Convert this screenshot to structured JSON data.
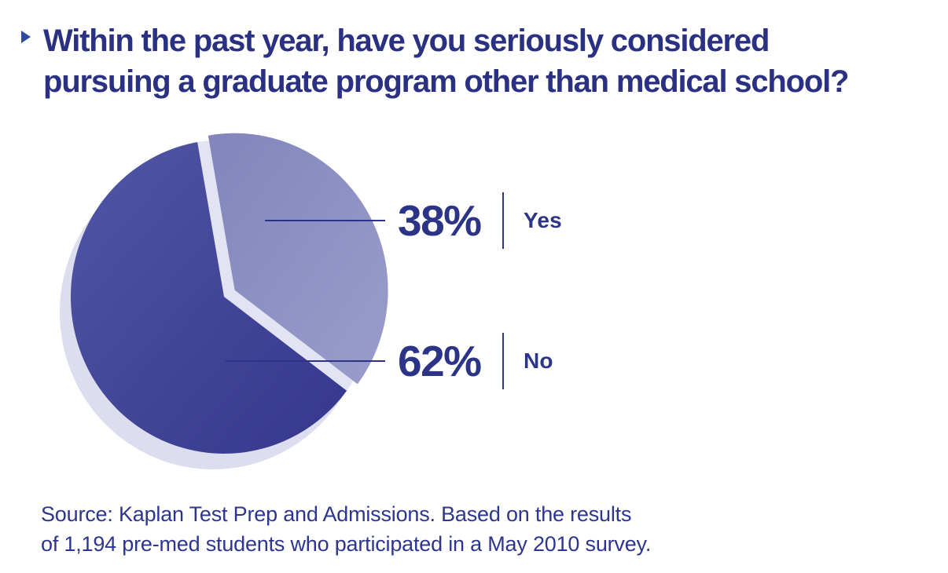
{
  "title": {
    "full_text": "Within the past year, have you seriously considered pursuing a graduate program other than medical school?",
    "lines": [
      "Within the past year, have you seriously considered",
      "pursuing a graduate program other than medical school?"
    ]
  },
  "chart_data": {
    "type": "pie",
    "title": "Within the past year, have you seriously considered pursuing a graduate program other than medical school?",
    "categories": [
      "Yes",
      "No"
    ],
    "values": [
      38,
      62
    ],
    "unit": "%",
    "slices": [
      {
        "label": "Yes",
        "value": 38,
        "display": "38%",
        "exploded": true,
        "gradient": [
          "#8285bc",
          "#9a9dcb"
        ]
      },
      {
        "label": "No",
        "value": 62,
        "display": "62%",
        "exploded": false,
        "gradient": [
          "#5156a5",
          "#34378c"
        ]
      }
    ],
    "start_angle": 100,
    "direction": "counterclockwise",
    "style": "3d-exploded-with-shadow",
    "shadow_color": "#dcddef",
    "gap_color": "#e2e3f3",
    "leader_line_color": "#2c3488",
    "legend_position": "right"
  },
  "callouts": [
    {
      "percent": "38%",
      "answer": "Yes"
    },
    {
      "percent": "62%",
      "answer": "No"
    }
  ],
  "source": {
    "full_text": "Source: Kaplan Test Prep and Admissions. Based on the results of 1,194 pre-med students who participated in a May 2010 survey.",
    "lines": [
      "Source: Kaplan Test Prep and Admissions. Based on the results",
      "of 1,194 pre-med students who participated in a May 2010 survey."
    ]
  },
  "colors": {
    "title_color": "#2b3182",
    "bullet_color": "#2e4a9f",
    "callout_color": "#2c3488",
    "source_color": "#2d3590"
  }
}
